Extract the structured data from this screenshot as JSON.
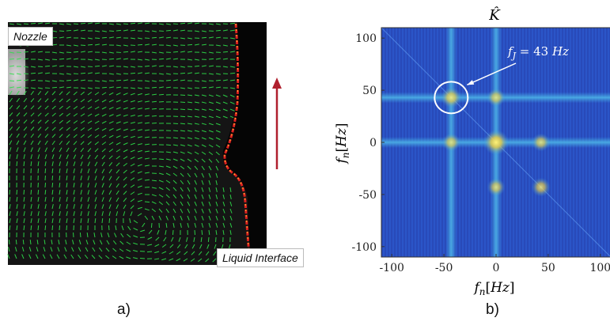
{
  "figure_a": {
    "nozzle_label": "Nozzle",
    "interface_label": "Liquid Interface",
    "caption": "a)",
    "colors": {
      "vectors": "#2ee04a",
      "interface": "#e02020",
      "arrow": "#b0202e",
      "background": "#111111"
    }
  },
  "figure_b": {
    "caption": "b)",
    "chart_data": {
      "type": "heatmap",
      "title": "K̂",
      "xlabel": "f_n[Hz]",
      "ylabel": "f_n[Hz]",
      "xlim": [
        -110,
        110
      ],
      "ylim": [
        -110,
        110
      ],
      "xticks": [
        "-100",
        "-50",
        "0",
        "50",
        "100"
      ],
      "yticks": [
        "100",
        "50",
        "0",
        "-50",
        "-100"
      ],
      "annotation": {
        "text": "f_J = 43 Hz",
        "target": [
          -43,
          43
        ]
      },
      "peaks": [
        {
          "x": 0,
          "y": 0,
          "intensity": 1.0
        },
        {
          "x": -43,
          "y": 43,
          "intensity": 0.7
        },
        {
          "x": 43,
          "y": -43,
          "intensity": 0.6
        },
        {
          "x": 0,
          "y": 43,
          "intensity": 0.55
        },
        {
          "x": 0,
          "y": -43,
          "intensity": 0.55
        },
        {
          "x": -43,
          "y": 0,
          "intensity": 0.55
        },
        {
          "x": 43,
          "y": 0,
          "intensity": 0.55
        }
      ],
      "lines": [
        {
          "axis": "x",
          "value": 0
        },
        {
          "axis": "y",
          "value": 0
        },
        {
          "axis": "x",
          "value": -43
        },
        {
          "axis": "y",
          "value": 43
        }
      ],
      "colormap": [
        "#1f2a8c",
        "#2b55c8",
        "#3ea0e0",
        "#f0e040"
      ],
      "grid": false
    }
  }
}
